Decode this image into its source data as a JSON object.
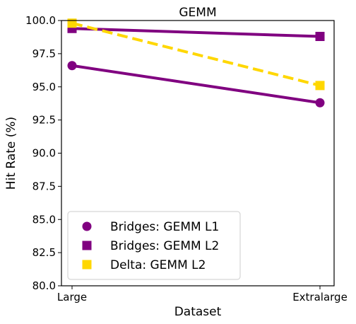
{
  "chart_data": {
    "type": "line",
    "title": "GEMM",
    "xlabel": "Dataset",
    "ylabel": "Hit Rate (%)",
    "categories": [
      "Large",
      "Extralarge"
    ],
    "ylim": [
      80.0,
      100.0
    ],
    "yticks": [
      "80.0",
      "82.5",
      "85.0",
      "87.5",
      "90.0",
      "92.5",
      "95.0",
      "97.5",
      "100.0"
    ],
    "series": [
      {
        "name": "Bridges: GEMM L1",
        "values": [
          96.6,
          93.8
        ],
        "color": "#800080",
        "marker": "circle",
        "linestyle": "solid"
      },
      {
        "name": "Bridges: GEMM L2",
        "values": [
          99.4,
          98.8
        ],
        "color": "#800080",
        "marker": "square",
        "linestyle": "solid"
      },
      {
        "name": "Delta: GEMM L2",
        "values": [
          99.8,
          95.1
        ],
        "color": "#FFD700",
        "marker": "square",
        "linestyle": "dashed"
      }
    ],
    "legend": "bottom-left",
    "grid": false
  }
}
